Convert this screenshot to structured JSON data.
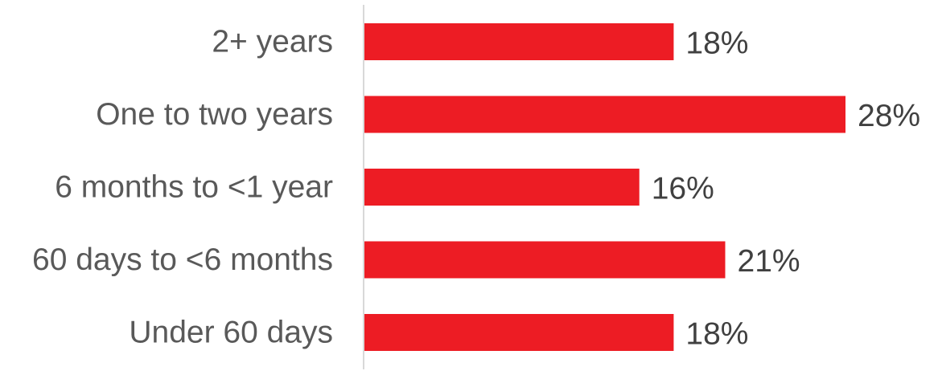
{
  "chart_data": {
    "type": "bar",
    "orientation": "horizontal",
    "categories": [
      "2+ years",
      "One to two years",
      "6 months to <1 year",
      "60 days to <6 months",
      "Under 60 days"
    ],
    "values": [
      18,
      28,
      16,
      21,
      18
    ],
    "value_labels": [
      "18%",
      "28%",
      "16%",
      "21%",
      "18%"
    ],
    "unit": "%",
    "xlim": [
      0,
      28
    ],
    "grid": false,
    "bar_color": "#ED1C24",
    "axis_color": "#D9D9D9"
  }
}
